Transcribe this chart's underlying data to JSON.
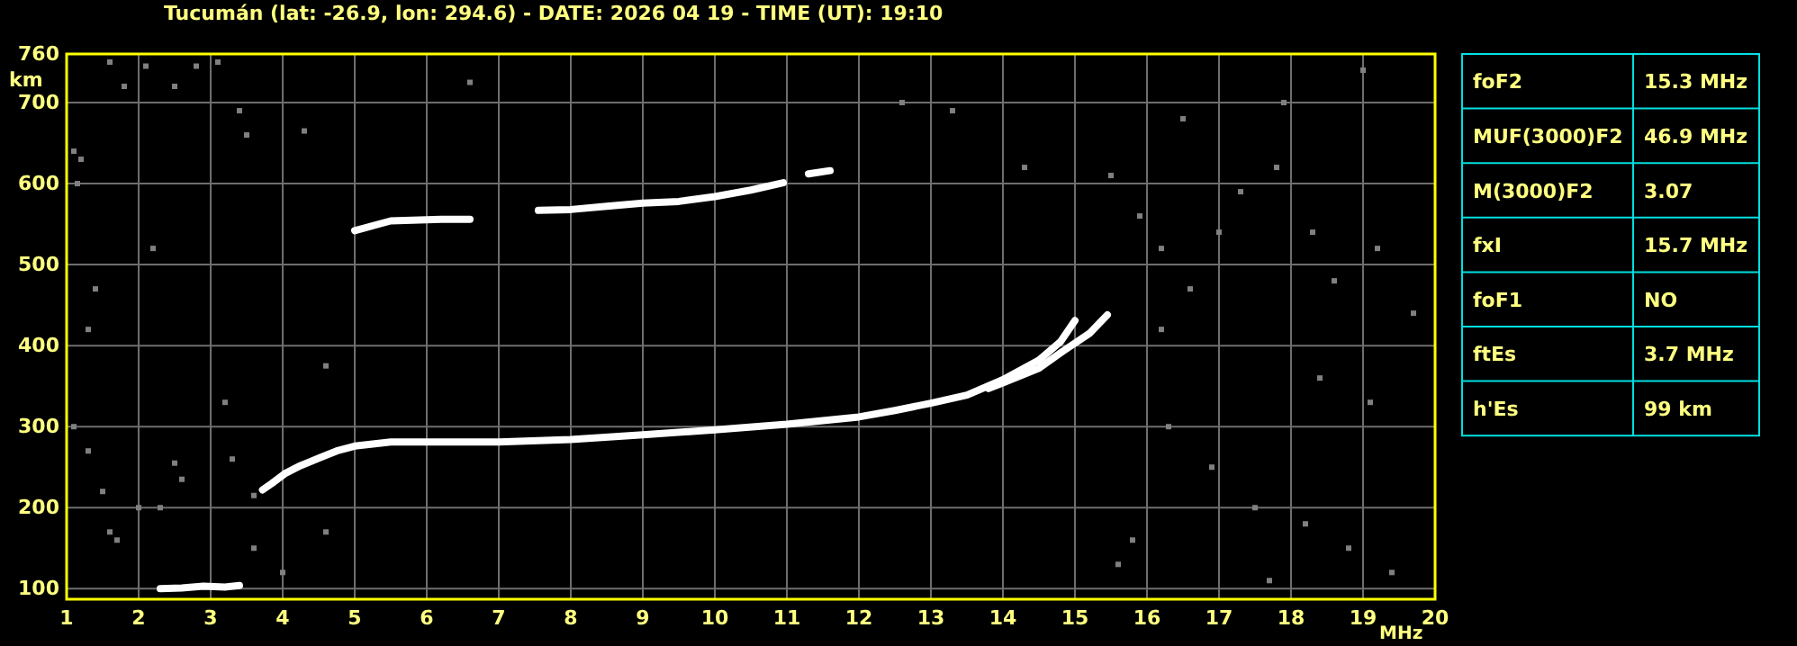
{
  "chart_data": [
    {
      "type": "line",
      "title": "Tucumán (lat: -26.9, lon: 294.6) - DATE: 2026 04 19 - TIME (UT): 19:10",
      "xlabel": "MHz",
      "ylabel": "km",
      "xlim": [
        1,
        20
      ],
      "ylim": [
        87,
        760
      ],
      "xticks": [
        1,
        2,
        3,
        4,
        5,
        6,
        7,
        8,
        9,
        10,
        11,
        12,
        13,
        14,
        15,
        16,
        17,
        18,
        19,
        20
      ],
      "yticks": [
        100,
        200,
        300,
        400,
        500,
        600,
        700,
        760
      ],
      "grid": true,
      "line_style": "solid",
      "series": [
        {
          "color": "#ffffff",
          "x": [
            3.72,
            3.85,
            4.03,
            4.25,
            4.5,
            4.75,
            5,
            5.5,
            6,
            7,
            8,
            9,
            10,
            11,
            12,
            12.5,
            13,
            13.5,
            14,
            14.5,
            14.8,
            15.0
          ],
          "values": [
            222,
            230,
            242,
            252,
            261,
            270,
            276,
            281,
            281,
            281,
            284,
            290,
            296,
            303,
            312,
            320,
            329,
            339,
            358,
            382,
            405,
            431
          ]
        },
        {
          "color": "#ffffff",
          "x": [
            13.8,
            14,
            14.5,
            14.83,
            15.2,
            15.45
          ],
          "values": [
            347,
            354,
            372,
            393,
            415,
            438
          ]
        },
        {
          "color": "#ffffff",
          "x": [
            2.3,
            2.6,
            2.9,
            3.2,
            3.4
          ],
          "values": [
            100,
            101,
            103,
            102,
            104
          ]
        },
        {
          "color": "#ffffff",
          "x": [
            5.0,
            5.5,
            6.2,
            6.6,
            7.0,
            7.55,
            8.0,
            8.5,
            9.0,
            9.5,
            10.0,
            10.5,
            10.95,
            11.1,
            11.3,
            11.6
          ],
          "values": [
            542,
            554,
            556,
            556,
            null,
            567,
            568,
            572,
            576,
            578,
            584,
            592,
            601,
            null,
            612,
            616
          ]
        },
        {
          "type": "scatter",
          "marker": "square",
          "color": "#808080",
          "x": [
            1.1,
            1.2,
            1.15,
            1.6,
            1.8,
            2.1,
            2.5,
            2.8,
            3.1,
            3.4,
            3.5,
            4.3,
            6.6,
            1.1,
            1.3,
            1.5,
            1.6,
            1.7,
            2.0,
            2.3,
            2.5,
            2.6,
            3.2,
            3.3,
            3.6,
            3.6,
            4.0,
            4.6,
            4.6,
            1.4,
            1.3,
            2.2,
            12.6,
            13.3,
            14.3,
            15.5,
            15.9,
            16.2,
            16.6,
            17.0,
            17.3,
            17.8,
            18.3,
            18.6,
            19.2,
            19.7,
            16.3,
            16.9,
            17.5,
            18.2,
            18.8,
            19.4,
            15.8,
            16.5,
            17.9,
            19.0,
            16.2,
            18.4,
            19.1,
            17.7,
            15.6
          ],
          "values": [
            640,
            630,
            600,
            750,
            720,
            745,
            720,
            745,
            750,
            690,
            660,
            665,
            725,
            300,
            270,
            220,
            170,
            160,
            200,
            200,
            255,
            235,
            330,
            260,
            215,
            150,
            120,
            170,
            375,
            470,
            420,
            520,
            700,
            690,
            620,
            610,
            560,
            520,
            470,
            540,
            590,
            620,
            540,
            480,
            520,
            440,
            300,
            250,
            200,
            180,
            150,
            120,
            160,
            680,
            700,
            740,
            420,
            360,
            330,
            110,
            130
          ]
        }
      ]
    },
    {
      "type": "other",
      "annotations": [
        "foF2",
        "15.3 MHz",
        "MUF(3000)F2",
        "46.9 MHz",
        "M(3000)F2",
        "3.07",
        "fxI",
        "15.7 MHz",
        "foF1",
        "NO",
        "ftEs",
        "3.7 MHz",
        "h'Es",
        "99 km"
      ]
    }
  ]
}
